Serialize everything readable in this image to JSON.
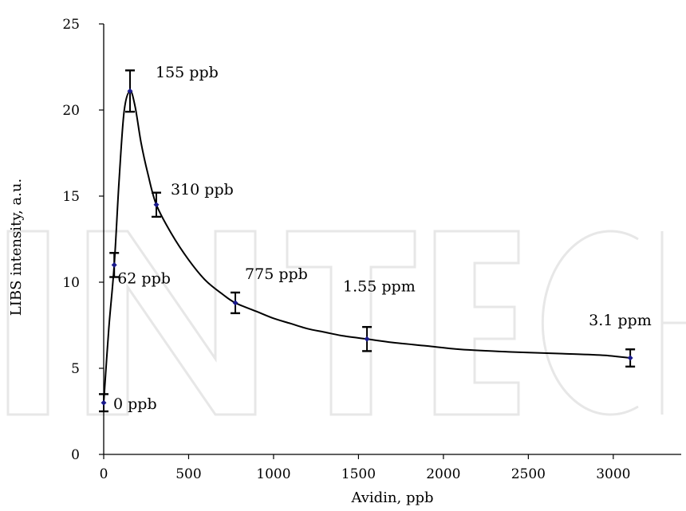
{
  "chart_data": {
    "type": "line",
    "title": "",
    "xlabel": "Avidin, ppb",
    "ylabel": "LIBS intensity, a.u.",
    "xlim": [
      0,
      3400
    ],
    "ylim": [
      0,
      25
    ],
    "xticks": [
      0,
      500,
      1000,
      1500,
      2000,
      2500,
      3000
    ],
    "yticks": [
      0,
      5,
      10,
      15,
      20,
      25
    ],
    "grid": false,
    "legend": "none",
    "series": [
      {
        "x": [
          0,
          62,
          155,
          310,
          775,
          1550,
          3100
        ],
        "y": [
          3.0,
          11.0,
          21.1,
          14.5,
          8.8,
          6.7,
          5.6
        ],
        "err": [
          0.5,
          0.7,
          1.2,
          0.7,
          0.6,
          0.7,
          0.5
        ],
        "point_labels": [
          "0 ppb",
          "62 ppb",
          "155 ppb",
          "310 ppb",
          "775 ppb",
          "1.55 ppm",
          "3.1 ppm"
        ]
      }
    ],
    "fit_curve": {
      "x": [
        0,
        30,
        62,
        90,
        120,
        155,
        185,
        220,
        260,
        310,
        400,
        500,
        600,
        700,
        775,
        900,
        1000,
        1100,
        1200,
        1300,
        1400,
        1550,
        1700,
        1900,
        2100,
        2400,
        2700,
        2950,
        3100
      ],
      "y": [
        3.0,
        7.3,
        11.0,
        15.8,
        19.9,
        21.1,
        20.2,
        18.1,
        16.3,
        14.5,
        12.8,
        11.3,
        10.1,
        9.3,
        8.8,
        8.3,
        7.9,
        7.6,
        7.3,
        7.1,
        6.9,
        6.7,
        6.5,
        6.3,
        6.1,
        5.95,
        5.85,
        5.75,
        5.6
      ]
    },
    "colors": {
      "line": "#000000",
      "marker": "#1a1a8c",
      "errorbar": "#000000",
      "watermark": "#e7e7e7"
    }
  }
}
